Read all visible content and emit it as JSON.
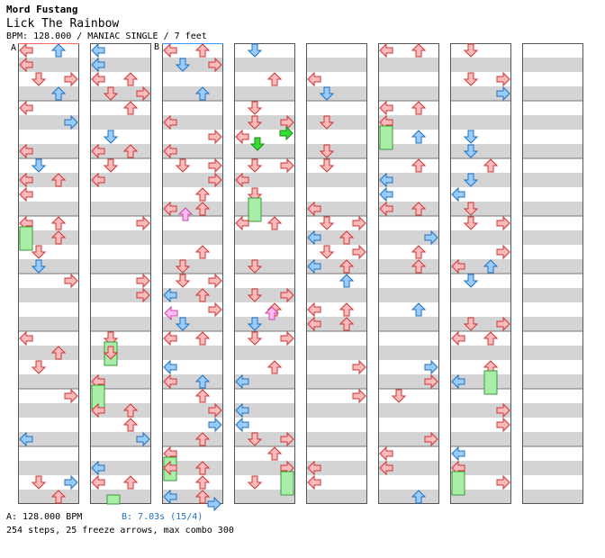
{
  "header": {
    "artist": "Mord Fustang",
    "title": "Lick The Rainbow",
    "info": "BPM: 128.000 / MANIAC SINGLE / 7 feet"
  },
  "markers": {
    "a": "A",
    "b": "B"
  },
  "footer": {
    "bpm_a": "A: 128.000 BPM",
    "bpm_b": "B: 7.03s (15/4)",
    "stats": "254 steps, 25 freeze arrows, max combo 300"
  },
  "colors": {
    "quarter": "#ff9999",
    "eighth": "#66aaee",
    "freeze": "#a8eea8",
    "green": "#33dd33",
    "pink": "#ff99ee"
  },
  "chart_data": {
    "type": "table",
    "columns": 8,
    "measures_per_column": 8,
    "steps": 254,
    "freeze_arrows": 25,
    "max_combo": 300
  }
}
